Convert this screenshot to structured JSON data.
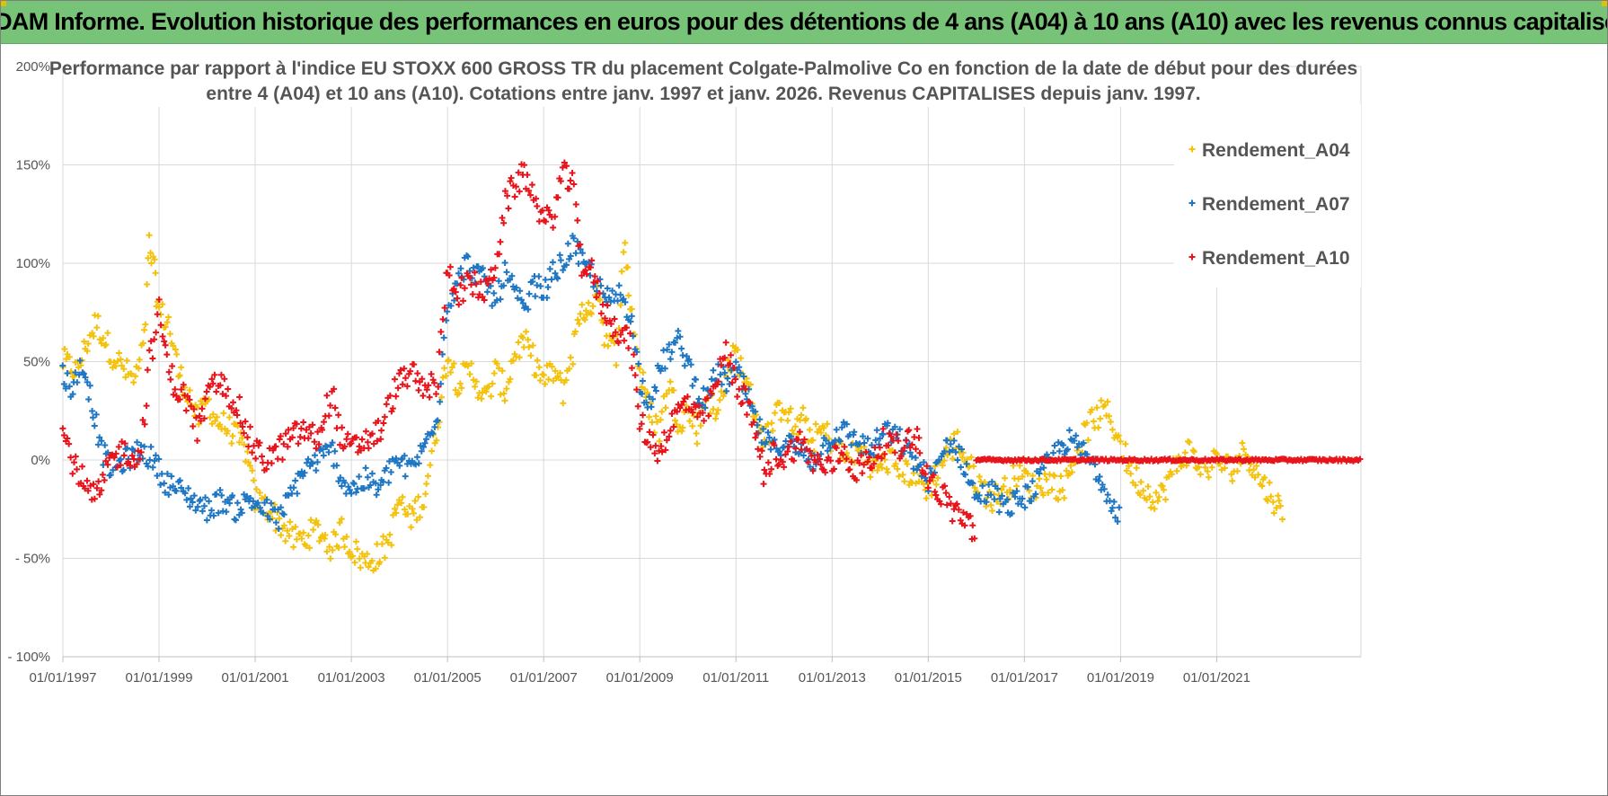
{
  "header": {
    "title": "ADAM Informe. Evolution historique des performances en euros pour des détentions de 4 ans (A04) à 10 ans (A10) avec les revenus connus capitalisés"
  },
  "colors": {
    "banner": "#77c377",
    "grid": "#d9d9d9",
    "A04": "#f4c20d",
    "A07": "#1f77c4",
    "A10": "#e8141c",
    "text": "#555555"
  },
  "chart_data": {
    "type": "scatter",
    "title_line1": "Performance par rapport à l'indice EU STOXX 600 GROSS TR  du placement Colgate-Palmolive Co en fonction de la date de début pour des durées",
    "title_line2": "entre 4 (A04) et 10 ans (A10).  Cotations entre janv. 1997 et janv. 2026. Revenus CAPITALISES depuis janv. 1997.",
    "xlim": [
      1997.0,
      2024.0
    ],
    "ylim": [
      -100,
      200
    ],
    "y_ticks": [
      {
        "v": 200,
        "label": "200%"
      },
      {
        "v": 150,
        "label": "150%"
      },
      {
        "v": 100,
        "label": "100%"
      },
      {
        "v": 50,
        "label": "50%"
      },
      {
        "v": 0,
        "label": "0%"
      },
      {
        "v": -50,
        "label": "- 50%"
      },
      {
        "v": -100,
        "label": "- 100%"
      }
    ],
    "x_ticks": [
      {
        "v": 1997,
        "label": "01/01/1997"
      },
      {
        "v": 1999,
        "label": "01/01/1999"
      },
      {
        "v": 2001,
        "label": "01/01/2001"
      },
      {
        "v": 2003,
        "label": "01/01/2003"
      },
      {
        "v": 2005,
        "label": "01/01/2005"
      },
      {
        "v": 2007,
        "label": "01/01/2007"
      },
      {
        "v": 2009,
        "label": "01/01/2009"
      },
      {
        "v": 2011,
        "label": "01/01/2011"
      },
      {
        "v": 2013,
        "label": "01/01/2013"
      },
      {
        "v": 2015,
        "label": "01/01/2015"
      },
      {
        "v": 2017,
        "label": "01/01/2017"
      },
      {
        "v": 2019,
        "label": "01/01/2019"
      },
      {
        "v": 2021,
        "label": "01/01/2021"
      }
    ],
    "legend_position": "top-right",
    "series": [
      {
        "name": "Rendement_A04",
        "color": "#f4c20d",
        "spread": 7,
        "points": [
          [
            1997.0,
            50
          ],
          [
            1997.3,
            45
          ],
          [
            1997.5,
            60
          ],
          [
            1997.7,
            70
          ],
          [
            1998.0,
            55
          ],
          [
            1998.3,
            45
          ],
          [
            1998.5,
            40
          ],
          [
            1998.7,
            60
          ],
          [
            1998.8,
            110
          ],
          [
            1998.9,
            95
          ],
          [
            1999.0,
            75
          ],
          [
            1999.2,
            70
          ],
          [
            1999.4,
            45
          ],
          [
            1999.6,
            35
          ],
          [
            1999.8,
            20
          ],
          [
            2000.0,
            30
          ],
          [
            2000.2,
            20
          ],
          [
            2000.5,
            15
          ],
          [
            2000.8,
            5
          ],
          [
            2001.0,
            -20
          ],
          [
            2001.3,
            -25
          ],
          [
            2001.6,
            -35
          ],
          [
            2001.8,
            -40
          ],
          [
            2002.0,
            -40
          ],
          [
            2002.3,
            -35
          ],
          [
            2002.6,
            -45
          ],
          [
            2002.8,
            -35
          ],
          [
            2003.0,
            -45
          ],
          [
            2003.3,
            -52
          ],
          [
            2003.6,
            -48
          ],
          [
            2003.8,
            -40
          ],
          [
            2004.0,
            -20
          ],
          [
            2004.2,
            -30
          ],
          [
            2004.5,
            -20
          ],
          [
            2004.8,
            20
          ],
          [
            2005.0,
            55
          ],
          [
            2005.2,
            40
          ],
          [
            2005.5,
            45
          ],
          [
            2005.8,
            30
          ],
          [
            2006.0,
            45
          ],
          [
            2006.2,
            35
          ],
          [
            2006.4,
            55
          ],
          [
            2006.6,
            60
          ],
          [
            2006.8,
            50
          ],
          [
            2007.0,
            40
          ],
          [
            2007.2,
            45
          ],
          [
            2007.4,
            35
          ],
          [
            2007.6,
            55
          ],
          [
            2007.8,
            80
          ],
          [
            2007.9,
            70
          ],
          [
            2008.1,
            90
          ],
          [
            2008.3,
            60
          ],
          [
            2008.5,
            55
          ],
          [
            2008.7,
            110
          ],
          [
            2008.8,
            80
          ],
          [
            2009.0,
            45
          ],
          [
            2009.2,
            25
          ],
          [
            2009.4,
            15
          ],
          [
            2009.6,
            40
          ],
          [
            2009.8,
            20
          ],
          [
            2010.0,
            25
          ],
          [
            2010.2,
            15
          ],
          [
            2010.4,
            35
          ],
          [
            2010.6,
            20
          ],
          [
            2010.8,
            45
          ],
          [
            2011.0,
            55
          ],
          [
            2011.2,
            40
          ],
          [
            2011.4,
            25
          ],
          [
            2011.6,
            10
          ],
          [
            2011.8,
            20
          ],
          [
            2012.0,
            30
          ],
          [
            2012.2,
            15
          ],
          [
            2012.4,
            20
          ],
          [
            2012.6,
            10
          ],
          [
            2012.8,
            15
          ],
          [
            2013.0,
            10
          ],
          [
            2013.3,
            0
          ],
          [
            2013.6,
            5
          ],
          [
            2013.9,
            -5
          ],
          [
            2014.2,
            0
          ],
          [
            2014.5,
            -5
          ],
          [
            2014.8,
            -10
          ],
          [
            2015.0,
            -15
          ],
          [
            2015.3,
            0
          ],
          [
            2015.6,
            10
          ],
          [
            2015.8,
            0
          ],
          [
            2016.0,
            -10
          ],
          [
            2016.3,
            -20
          ],
          [
            2016.6,
            -15
          ],
          [
            2016.9,
            -5
          ],
          [
            2017.2,
            -15
          ],
          [
            2017.5,
            -10
          ],
          [
            2017.8,
            -15
          ],
          [
            2018.1,
            5
          ],
          [
            2018.4,
            20
          ],
          [
            2018.7,
            25
          ],
          [
            2018.9,
            15
          ],
          [
            2019.2,
            -5
          ],
          [
            2019.5,
            -15
          ],
          [
            2019.8,
            -20
          ],
          [
            2020.1,
            -5
          ],
          [
            2020.4,
            5
          ],
          [
            2020.7,
            -5
          ],
          [
            2021.0,
            0
          ],
          [
            2021.3,
            -5
          ],
          [
            2021.6,
            5
          ],
          [
            2021.9,
            -10
          ],
          [
            2022.2,
            -20
          ],
          [
            2022.4,
            -30
          ]
        ]
      },
      {
        "name": "Rendement_A07",
        "color": "#1f77c4",
        "spread": 6,
        "points": [
          [
            1997.0,
            45
          ],
          [
            1997.2,
            35
          ],
          [
            1997.4,
            50
          ],
          [
            1997.6,
            30
          ],
          [
            1997.8,
            5
          ],
          [
            1998.0,
            -5
          ],
          [
            1998.3,
            0
          ],
          [
            1998.6,
            5
          ],
          [
            1998.9,
            0
          ],
          [
            1999.1,
            -10
          ],
          [
            1999.4,
            -15
          ],
          [
            1999.7,
            -20
          ],
          [
            2000.0,
            -25
          ],
          [
            2000.3,
            -20
          ],
          [
            2000.6,
            -25
          ],
          [
            2000.9,
            -20
          ],
          [
            2001.2,
            -25
          ],
          [
            2001.5,
            -30
          ],
          [
            2001.8,
            -15
          ],
          [
            2002.0,
            -5
          ],
          [
            2002.3,
            0
          ],
          [
            2002.6,
            5
          ],
          [
            2002.8,
            -10
          ],
          [
            2003.0,
            -15
          ],
          [
            2003.3,
            -10
          ],
          [
            2003.6,
            -15
          ],
          [
            2003.9,
            0
          ],
          [
            2004.2,
            -5
          ],
          [
            2004.5,
            5
          ],
          [
            2004.8,
            25
          ],
          [
            2005.0,
            80
          ],
          [
            2005.2,
            90
          ],
          [
            2005.4,
            100
          ],
          [
            2005.6,
            95
          ],
          [
            2005.8,
            90
          ],
          [
            2006.0,
            80
          ],
          [
            2006.2,
            95
          ],
          [
            2006.4,
            85
          ],
          [
            2006.6,
            75
          ],
          [
            2006.8,
            90
          ],
          [
            2007.0,
            85
          ],
          [
            2007.2,
            95
          ],
          [
            2007.4,
            100
          ],
          [
            2007.6,
            110
          ],
          [
            2007.8,
            100
          ],
          [
            2008.0,
            95
          ],
          [
            2008.2,
            85
          ],
          [
            2008.4,
            80
          ],
          [
            2008.6,
            85
          ],
          [
            2008.8,
            75
          ],
          [
            2009.0,
            40
          ],
          [
            2009.2,
            30
          ],
          [
            2009.4,
            45
          ],
          [
            2009.6,
            55
          ],
          [
            2009.8,
            60
          ],
          [
            2010.0,
            50
          ],
          [
            2010.2,
            35
          ],
          [
            2010.4,
            30
          ],
          [
            2010.6,
            45
          ],
          [
            2010.8,
            40
          ],
          [
            2011.0,
            45
          ],
          [
            2011.2,
            35
          ],
          [
            2011.4,
            20
          ],
          [
            2011.6,
            10
          ],
          [
            2011.8,
            5
          ],
          [
            2012.0,
            10
          ],
          [
            2012.3,
            5
          ],
          [
            2012.6,
            0
          ],
          [
            2012.9,
            10
          ],
          [
            2013.2,
            15
          ],
          [
            2013.5,
            10
          ],
          [
            2013.8,
            5
          ],
          [
            2014.1,
            15
          ],
          [
            2014.4,
            10
          ],
          [
            2014.7,
            0
          ],
          [
            2015.0,
            -10
          ],
          [
            2015.2,
            -5
          ],
          [
            2015.4,
            10
          ],
          [
            2015.6,
            5
          ],
          [
            2015.8,
            -5
          ],
          [
            2016.0,
            -20
          ],
          [
            2016.3,
            -15
          ],
          [
            2016.6,
            -25
          ],
          [
            2016.9,
            -20
          ],
          [
            2017.2,
            -15
          ],
          [
            2017.4,
            -5
          ],
          [
            2017.7,
            5
          ],
          [
            2017.9,
            10
          ],
          [
            2018.2,
            5
          ],
          [
            2018.5,
            -5
          ],
          [
            2018.8,
            -20
          ],
          [
            2019.0,
            -28
          ]
        ]
      },
      {
        "name": "Rendement_A10",
        "color": "#e8141c",
        "spread": 7,
        "points": [
          [
            1997.0,
            15
          ],
          [
            1997.2,
            0
          ],
          [
            1997.4,
            -10
          ],
          [
            1997.6,
            -20
          ],
          [
            1997.8,
            -15
          ],
          [
            1998.0,
            0
          ],
          [
            1998.3,
            5
          ],
          [
            1998.6,
            0
          ],
          [
            1998.8,
            50
          ],
          [
            1999.0,
            75
          ],
          [
            1999.2,
            45
          ],
          [
            1999.4,
            35
          ],
          [
            1999.6,
            30
          ],
          [
            1999.8,
            15
          ],
          [
            2000.0,
            30
          ],
          [
            2000.2,
            40
          ],
          [
            2000.4,
            35
          ],
          [
            2000.6,
            30
          ],
          [
            2000.8,
            15
          ],
          [
            2001.0,
            5
          ],
          [
            2001.2,
            0
          ],
          [
            2001.5,
            5
          ],
          [
            2001.7,
            10
          ],
          [
            2002.0,
            15
          ],
          [
            2002.3,
            10
          ],
          [
            2002.6,
            35
          ],
          [
            2002.8,
            10
          ],
          [
            2003.0,
            5
          ],
          [
            2003.3,
            10
          ],
          [
            2003.6,
            15
          ],
          [
            2003.9,
            35
          ],
          [
            2004.2,
            45
          ],
          [
            2004.5,
            35
          ],
          [
            2004.8,
            40
          ],
          [
            2005.0,
            100
          ],
          [
            2005.2,
            85
          ],
          [
            2005.5,
            90
          ],
          [
            2005.8,
            85
          ],
          [
            2006.0,
            100
          ],
          [
            2006.2,
            130
          ],
          [
            2006.4,
            140
          ],
          [
            2006.6,
            145
          ],
          [
            2006.8,
            135
          ],
          [
            2007.0,
            120
          ],
          [
            2007.2,
            125
          ],
          [
            2007.4,
            145
          ],
          [
            2007.6,
            140
          ],
          [
            2007.8,
            100
          ],
          [
            2008.0,
            95
          ],
          [
            2008.2,
            80
          ],
          [
            2008.4,
            70
          ],
          [
            2008.6,
            65
          ],
          [
            2008.8,
            60
          ],
          [
            2009.0,
            20
          ],
          [
            2009.2,
            10
          ],
          [
            2009.4,
            5
          ],
          [
            2009.6,
            15
          ],
          [
            2009.8,
            25
          ],
          [
            2010.0,
            30
          ],
          [
            2010.2,
            20
          ],
          [
            2010.4,
            25
          ],
          [
            2010.6,
            40
          ],
          [
            2010.8,
            55
          ],
          [
            2011.0,
            40
          ],
          [
            2011.2,
            30
          ],
          [
            2011.4,
            15
          ],
          [
            2011.6,
            -10
          ],
          [
            2011.8,
            5
          ],
          [
            2012.0,
            0
          ],
          [
            2012.3,
            10
          ],
          [
            2012.6,
            0
          ],
          [
            2012.9,
            -5
          ],
          [
            2013.2,
            5
          ],
          [
            2013.5,
            -5
          ],
          [
            2013.8,
            0
          ],
          [
            2014.1,
            10
          ],
          [
            2014.4,
            5
          ],
          [
            2014.7,
            15
          ],
          [
            2015.0,
            -10
          ],
          [
            2015.2,
            -15
          ],
          [
            2015.5,
            -25
          ],
          [
            2015.8,
            -30
          ],
          [
            2016.0,
            -38
          ]
        ],
        "flat_zero_from": 2016.0,
        "flat_zero_to": 2024.0
      }
    ]
  }
}
